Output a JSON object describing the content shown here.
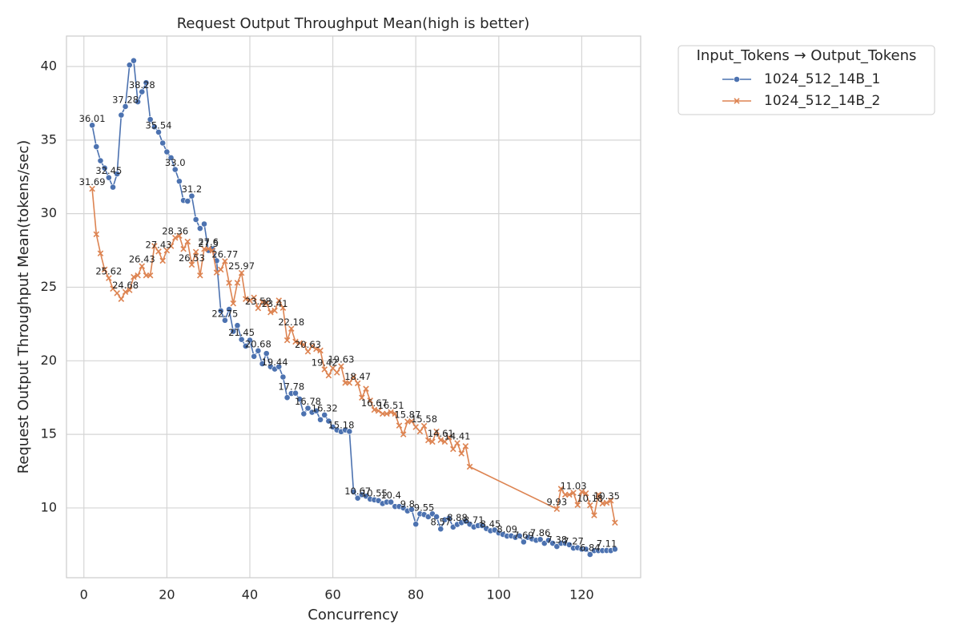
{
  "chart_data": {
    "type": "line",
    "title": "Request Output Throughput Mean(high is better)",
    "x_label": "Concurrency",
    "y_label": "Request Output Throughput Mean(tokens/sec)",
    "legend_title": "Input_Tokens → Output_Tokens",
    "legend": "outside-upper-right",
    "grid": true,
    "xlim": [
      -4.2,
      134.2
    ],
    "ylim": [
      5.26,
      42.07
    ],
    "xticks": [
      0,
      20,
      40,
      60,
      80,
      100,
      120
    ],
    "yticks": [
      10,
      15,
      20,
      25,
      30,
      35,
      40
    ],
    "series": [
      {
        "name": "1024_512_14B_1",
        "color": "#4c72b0",
        "marker": "o",
        "x": [
          2,
          3,
          4,
          5,
          6,
          7,
          8,
          9,
          10,
          11,
          12,
          13,
          14,
          15,
          16,
          17,
          18,
          19,
          20,
          21,
          22,
          23,
          24,
          25,
          26,
          27,
          28,
          29,
          30,
          31,
          32,
          33,
          34,
          35,
          36,
          37,
          38,
          39,
          40,
          41,
          42,
          43,
          44,
          45,
          46,
          47,
          48,
          49,
          50,
          51,
          52,
          53,
          54,
          55,
          56,
          57,
          58,
          59,
          60,
          61,
          62,
          63,
          64,
          65,
          66,
          67,
          68,
          69,
          70,
          71,
          72,
          73,
          74,
          75,
          76,
          77,
          78,
          79,
          80,
          81,
          82,
          83,
          84,
          85,
          86,
          87,
          88,
          89,
          90,
          91,
          92,
          93,
          94,
          95,
          96,
          97,
          98,
          99,
          100,
          101,
          102,
          103,
          104,
          105,
          106,
          107,
          108,
          109,
          110,
          111,
          112,
          113,
          114,
          115,
          116,
          117,
          118,
          119,
          120,
          121,
          122,
          123,
          124,
          125,
          126,
          127,
          128
        ],
        "values": [
          36.01,
          34.55,
          33.6,
          33.1,
          32.45,
          31.8,
          32.7,
          36.7,
          37.28,
          40.1,
          40.4,
          37.6,
          38.28,
          38.9,
          36.4,
          35.9,
          35.54,
          34.8,
          34.2,
          33.8,
          33.0,
          32.2,
          30.9,
          30.85,
          31.2,
          29.6,
          29.0,
          29.3,
          27.5,
          27.6,
          26.8,
          23.4,
          22.75,
          23.5,
          22.0,
          22.4,
          21.45,
          21.0,
          21.4,
          20.3,
          20.68,
          19.8,
          20.5,
          19.6,
          19.44,
          19.6,
          18.9,
          17.5,
          17.78,
          17.8,
          17.4,
          16.4,
          16.78,
          16.5,
          16.6,
          16.0,
          16.32,
          15.9,
          15.5,
          15.3,
          15.18,
          15.3,
          15.2,
          11.1,
          10.67,
          10.9,
          10.8,
          10.6,
          10.55,
          10.5,
          10.3,
          10.4,
          10.4,
          10.1,
          10.1,
          10.0,
          9.8,
          9.9,
          8.9,
          9.6,
          9.55,
          9.4,
          9.6,
          9.4,
          8.57,
          9.2,
          9.3,
          8.7,
          8.88,
          9.0,
          9.1,
          8.9,
          8.71,
          8.8,
          8.8,
          8.6,
          8.45,
          8.5,
          8.3,
          8.2,
          8.09,
          8.1,
          8.0,
          8.1,
          7.69,
          8.0,
          7.9,
          7.8,
          7.86,
          7.6,
          7.8,
          7.6,
          7.38,
          7.6,
          7.6,
          7.5,
          7.27,
          7.3,
          7.2,
          7.2,
          6.84,
          7.1,
          7.1,
          7.1,
          7.11,
          7.1,
          7.2
        ],
        "value_labels": [
          "36.01",
          null,
          null,
          null,
          "32.45",
          null,
          null,
          null,
          "37.28",
          null,
          null,
          null,
          "38.28",
          null,
          null,
          null,
          "35.54",
          null,
          null,
          null,
          "33.0",
          null,
          null,
          null,
          "31.2",
          null,
          null,
          null,
          "27.5",
          null,
          null,
          null,
          "22.75",
          null,
          null,
          null,
          "21.45",
          null,
          null,
          null,
          "20.68",
          null,
          null,
          null,
          "19.44",
          null,
          null,
          null,
          "17.78",
          null,
          null,
          null,
          "16.78",
          null,
          null,
          null,
          "16.32",
          null,
          null,
          null,
          "15.18",
          null,
          null,
          null,
          "10.67",
          null,
          null,
          null,
          "10.55",
          null,
          null,
          null,
          "10.4",
          null,
          null,
          null,
          "9.8",
          null,
          null,
          null,
          "9.55",
          null,
          null,
          null,
          "8.57",
          null,
          null,
          null,
          "8.88",
          null,
          null,
          null,
          "8.71",
          null,
          null,
          null,
          "8.45",
          null,
          null,
          null,
          "8.09",
          null,
          null,
          null,
          "7.69",
          null,
          null,
          null,
          "7.86",
          null,
          null,
          null,
          "7.38",
          null,
          null,
          null,
          "7.27",
          null,
          null,
          null,
          "6.84",
          null,
          null,
          null,
          "7.11",
          null,
          null
        ]
      },
      {
        "name": "1024_512_14B_2",
        "color": "#dd8452",
        "marker": "x",
        "x": [
          2,
          3,
          4,
          5,
          6,
          7,
          8,
          9,
          10,
          11,
          12,
          13,
          14,
          15,
          16,
          17,
          18,
          19,
          20,
          21,
          22,
          23,
          24,
          25,
          26,
          27,
          28,
          29,
          30,
          31,
          32,
          33,
          34,
          35,
          36,
          37,
          38,
          39,
          40,
          41,
          42,
          43,
          44,
          45,
          46,
          47,
          48,
          49,
          50,
          51,
          52,
          53,
          54,
          55,
          56,
          57,
          58,
          59,
          60,
          61,
          62,
          63,
          64,
          65,
          66,
          67,
          68,
          69,
          70,
          71,
          72,
          73,
          74,
          75,
          76,
          77,
          78,
          79,
          80,
          81,
          82,
          83,
          84,
          85,
          86,
          87,
          88,
          89,
          90,
          91,
          92,
          93,
          114,
          115,
          116,
          117,
          118,
          119,
          120,
          121,
          122,
          123,
          124,
          125,
          126,
          127,
          128
        ],
        "values": [
          31.69,
          28.6,
          27.3,
          26.2,
          25.62,
          24.9,
          24.6,
          24.2,
          24.68,
          24.8,
          25.7,
          25.8,
          26.43,
          25.8,
          25.8,
          27.8,
          27.43,
          26.8,
          27.5,
          27.8,
          28.36,
          28.5,
          27.6,
          28.1,
          26.53,
          27.4,
          25.8,
          27.6,
          27.6,
          27.5,
          26.0,
          26.2,
          26.77,
          25.3,
          23.9,
          25.3,
          25.97,
          24.2,
          24.1,
          24.3,
          23.58,
          24.0,
          23.9,
          23.3,
          23.41,
          24.1,
          23.6,
          21.4,
          22.18,
          21.3,
          21.2,
          21.1,
          20.63,
          21.0,
          20.8,
          20.7,
          19.42,
          19.0,
          19.5,
          19.2,
          19.63,
          18.5,
          18.5,
          18.9,
          18.47,
          17.5,
          18.1,
          17.3,
          16.67,
          16.6,
          16.4,
          16.4,
          16.51,
          16.4,
          15.6,
          15.0,
          15.87,
          15.9,
          15.5,
          15.2,
          15.58,
          14.6,
          14.5,
          15.2,
          14.61,
          14.5,
          14.8,
          14.0,
          14.41,
          13.7,
          14.2,
          12.8,
          9.93,
          11.3,
          10.9,
          10.9,
          11.03,
          10.2,
          11.1,
          11.0,
          10.18,
          9.5,
          10.9,
          10.3,
          10.35,
          10.5,
          9.0
        ],
        "value_labels": [
          "31.69",
          null,
          null,
          null,
          "25.62",
          null,
          null,
          null,
          "24.68",
          null,
          null,
          null,
          "26.43",
          null,
          null,
          null,
          "27.43",
          null,
          null,
          null,
          "28.36",
          null,
          null,
          null,
          "26.53",
          null,
          null,
          null,
          "27.6",
          null,
          null,
          null,
          "26.77",
          null,
          null,
          null,
          "25.97",
          null,
          null,
          null,
          "23.58",
          null,
          null,
          null,
          "23.41",
          null,
          null,
          null,
          "22.18",
          null,
          null,
          null,
          "20.63",
          null,
          null,
          null,
          "19.42",
          null,
          null,
          null,
          "19.63",
          null,
          null,
          null,
          "18.47",
          null,
          null,
          null,
          "16.67",
          null,
          null,
          null,
          "16.51",
          null,
          null,
          null,
          "15.87",
          null,
          null,
          null,
          "15.58",
          null,
          null,
          null,
          "14.61",
          null,
          null,
          null,
          "14.41",
          null,
          null,
          null,
          "9.93",
          null,
          null,
          null,
          "11.03",
          null,
          null,
          null,
          "10.18",
          null,
          null,
          null,
          "10.35",
          null,
          null
        ]
      }
    ]
  }
}
